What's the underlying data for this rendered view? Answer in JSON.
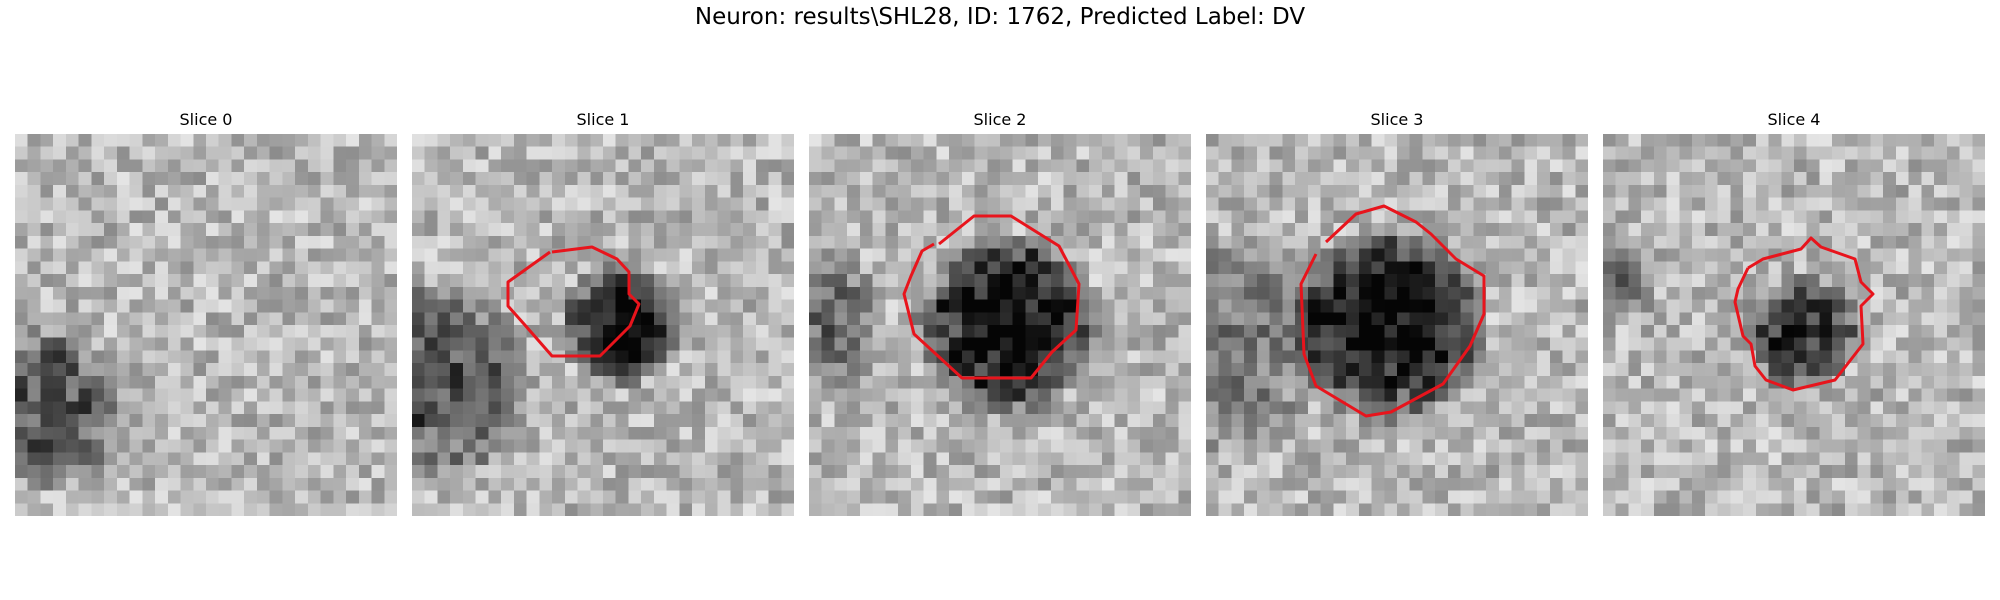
{
  "figure": {
    "title": "Neuron: results\\SHL28, ID: 1762, Predicted Label: DV"
  },
  "panels": [
    {
      "title": "Slice 0",
      "has_contour": false
    },
    {
      "title": "Slice 1",
      "has_contour": true
    },
    {
      "title": "Slice 2",
      "has_contour": true
    },
    {
      "title": "Slice 3",
      "has_contour": true
    },
    {
      "title": "Slice 4",
      "has_contour": true
    }
  ],
  "colors": {
    "contour": "#e8141c",
    "background": "#ffffff"
  }
}
